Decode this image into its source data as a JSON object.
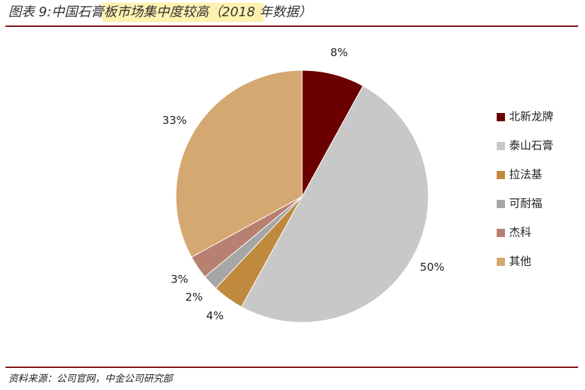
{
  "chart_data": {
    "type": "pie",
    "title": "图表 9:中国石膏板市场集中度较高（2018 年数据）",
    "source": "资料来源：公司官网，中金公司研究部",
    "categories": [
      "北新龙牌",
      "泰山石膏",
      "拉法基",
      "可耐福",
      "杰科",
      "其他"
    ],
    "values": [
      8,
      50,
      4,
      2,
      3,
      33
    ],
    "value_labels": [
      "8%",
      "50%",
      "4%",
      "2%",
      "3%",
      "33%"
    ],
    "colors": [
      "#6b0000",
      "#c8c8c8",
      "#c08a3e",
      "#a6a6a6",
      "#b88070",
      "#d4a870"
    ],
    "legend": "right"
  }
}
